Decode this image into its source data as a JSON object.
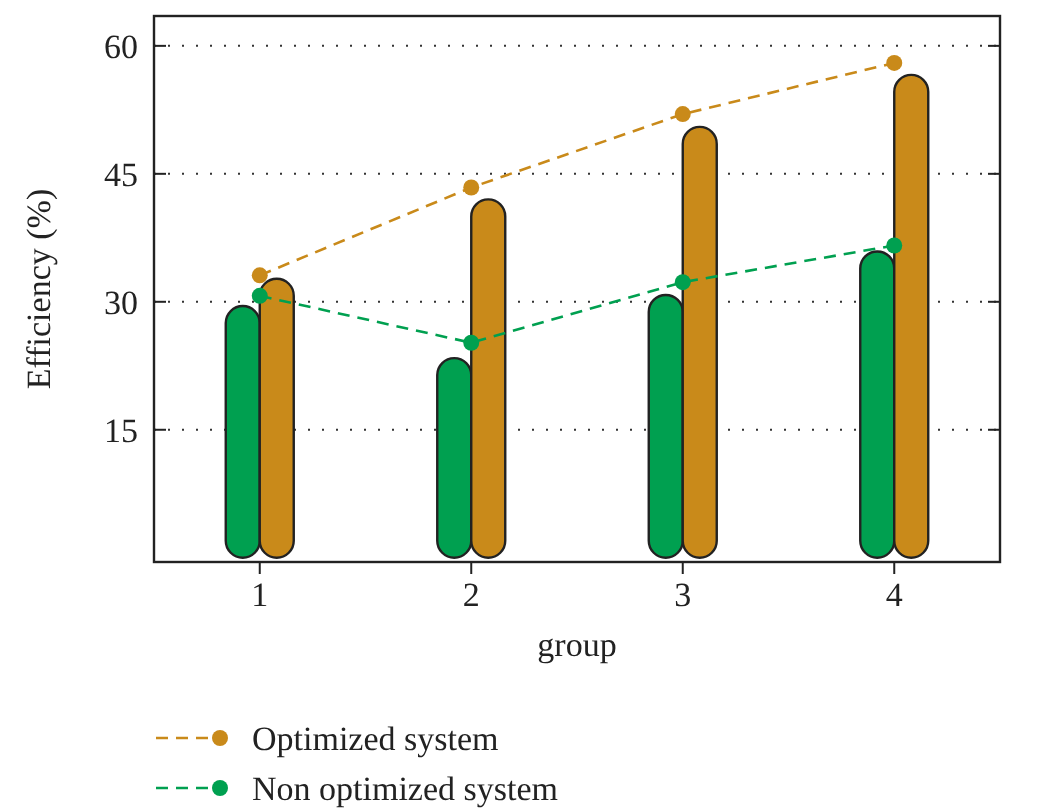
{
  "chart_data": {
    "type": "bar",
    "xlabel": "group",
    "ylabel": "Efficiency (%)",
    "categories": [
      "1",
      "2",
      "3",
      "4"
    ],
    "series": [
      {
        "color": "#00a050",
        "values": [
          29.5,
          23.4,
          30.8,
          35.9
        ]
      },
      {
        "color": "#c98a1a",
        "values": [
          32.7,
          42,
          50.5,
          56.6
        ]
      },
      {
        "type": "line",
        "name": "Optimized system",
        "color": "#c98a1a",
        "values": [
          33.1,
          43.4,
          52,
          58
        ],
        "marker": "circle",
        "line_style": "dashed"
      },
      {
        "type": "line",
        "name": "Non optimized system",
        "color": "#00a050",
        "values": [
          30.7,
          25.2,
          32.3,
          36.6
        ],
        "marker": "circle",
        "line_style": "dashed"
      }
    ],
    "ylim": [
      -0.5,
      63.5
    ],
    "yticks": [
      15,
      30,
      45,
      60
    ],
    "grid": "y",
    "legend": "bottom"
  }
}
